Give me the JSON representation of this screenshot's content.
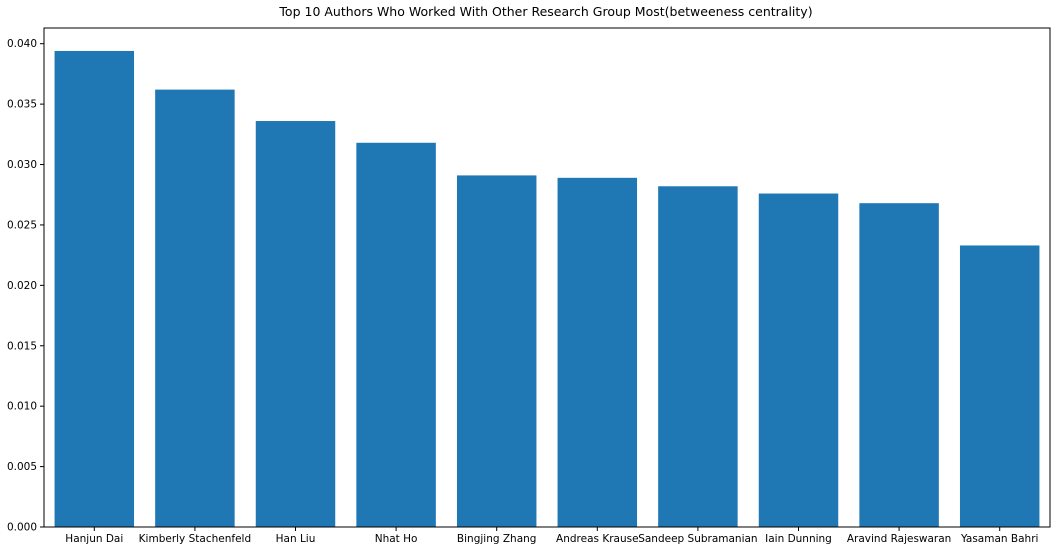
{
  "chart_data": {
    "type": "bar",
    "title": "Top 10 Authors Who Worked With Other Research Group Most(betweeness centrality)",
    "xlabel": "",
    "ylabel": "",
    "categories": [
      "Hanjun Dai",
      "Kimberly Stachenfeld",
      "Han Liu",
      "Nhat Ho",
      "Bingjing Zhang",
      "Andreas Krause",
      "Sandeep Subramanian",
      "Iain Dunning",
      "Aravind Rajeswaran",
      "Yasaman Bahri"
    ],
    "values": [
      0.0394,
      0.0362,
      0.0336,
      0.0318,
      0.0291,
      0.0289,
      0.0282,
      0.0276,
      0.0268,
      0.0233
    ],
    "ylim": [
      0,
      0.0413
    ],
    "yticks": [
      "0.000",
      "0.005",
      "0.010",
      "0.015",
      "0.020",
      "0.025",
      "0.030",
      "0.035",
      "0.040"
    ],
    "grid": false,
    "colors": {
      "bar": "#1f77b4",
      "axis": "#000000"
    }
  }
}
